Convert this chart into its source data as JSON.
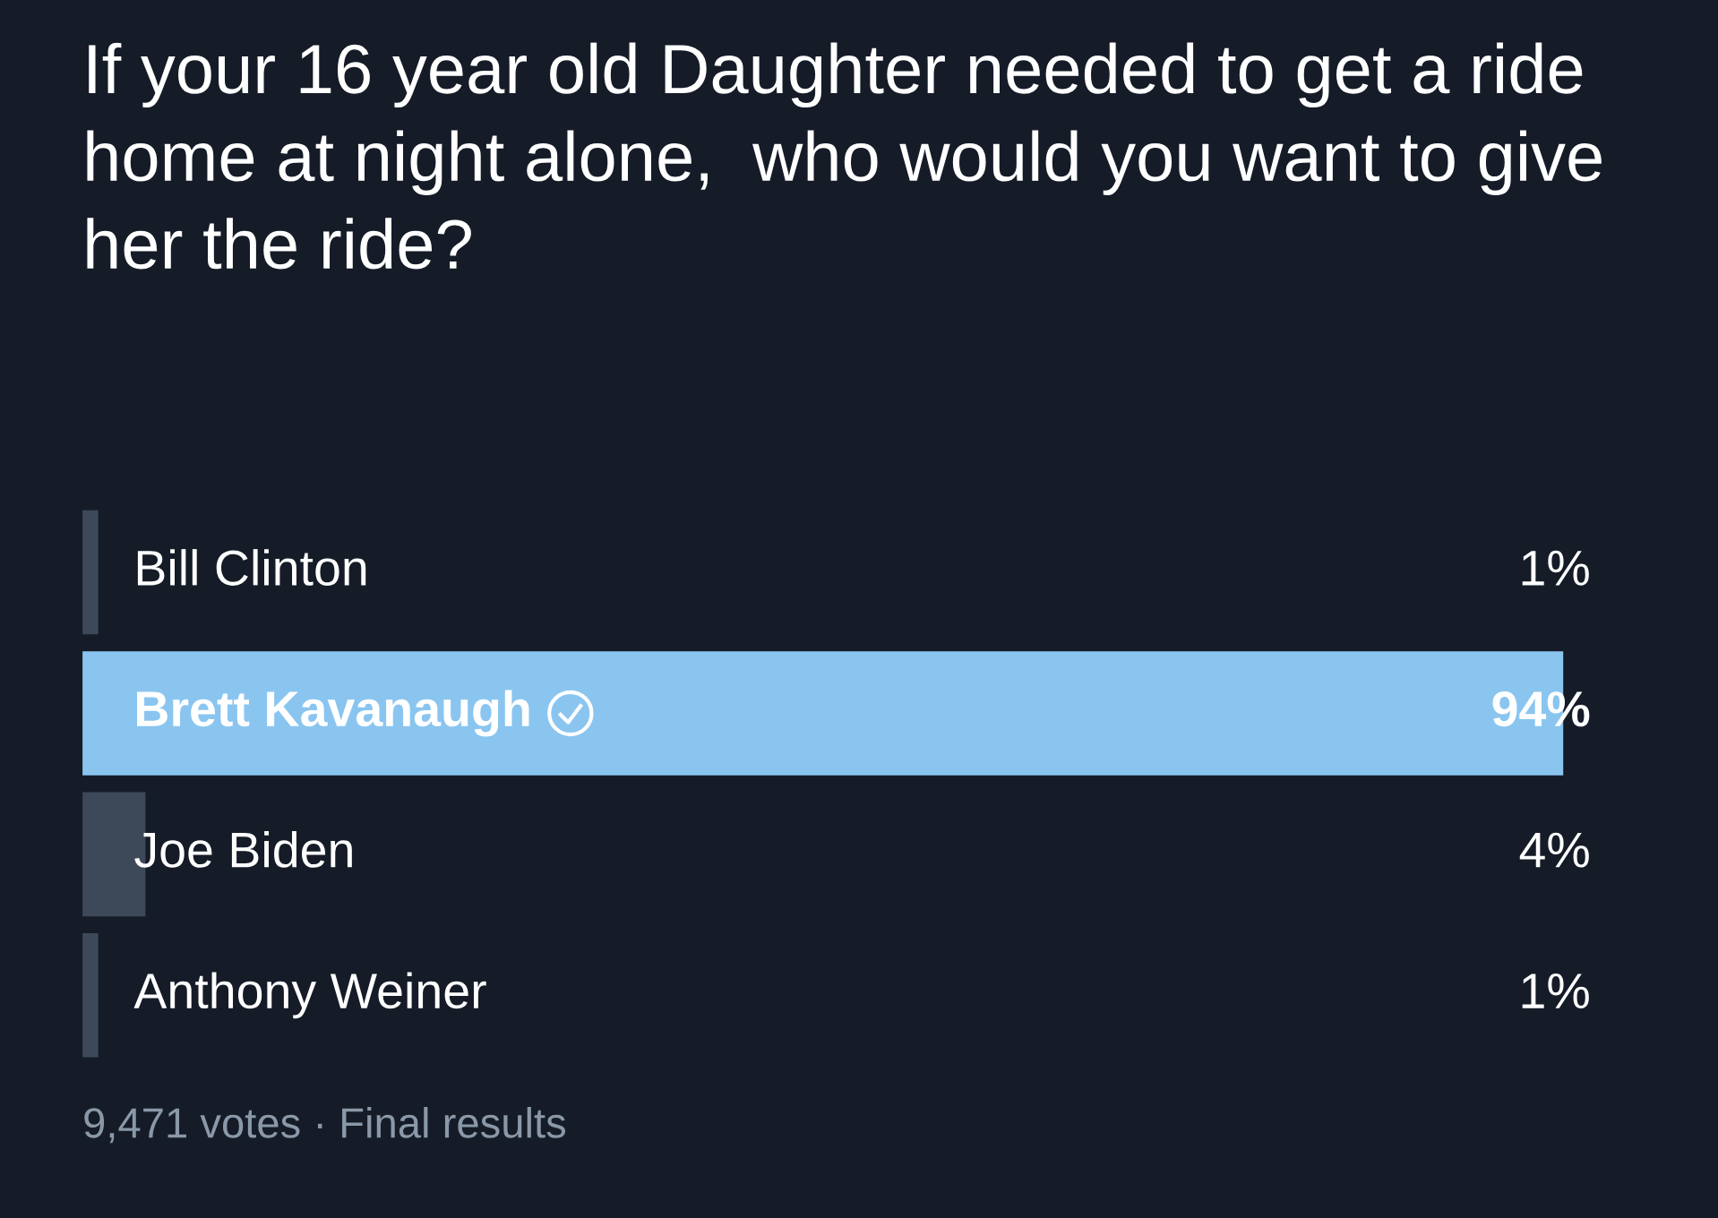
{
  "chart_data": {
    "type": "bar",
    "orientation": "horizontal",
    "title": "If your 16 year old Daughter needed to get a ride home at night alone,  who would you want to give her the ride?",
    "categories": [
      "Bill Clinton",
      "Brett Kavanaugh",
      "Joe Biden",
      "Anthony Weiner"
    ],
    "values": [
      1,
      94,
      4,
      1
    ],
    "colors": [
      "#3d4858",
      "#8ac5f0",
      "#3d4858",
      "#3d4858"
    ],
    "value_labels": [
      "1%",
      "94%",
      "4%",
      "1%"
    ],
    "annotations": [
      "9,471 votes · Final results"
    ]
  }
}
